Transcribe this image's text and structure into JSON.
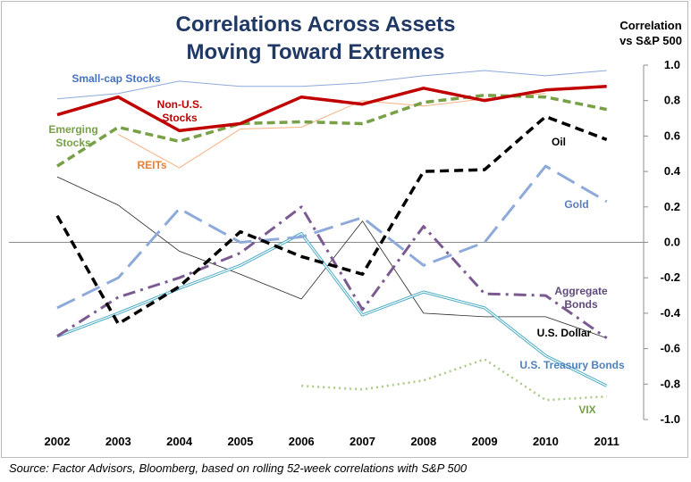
{
  "title_line1": "Correlations Across Assets",
  "title_line2": "Moving Toward Extremes",
  "y_title_line1": "Correlation",
  "y_title_line2": "vs S&P 500",
  "source": "Source: Factor Advisors, Bloomberg, based on rolling 52-week correlations with S&P 500",
  "chart_data": {
    "type": "line",
    "title": "Correlations Across Assets Moving Toward Extremes",
    "ylabel": "Correlation vs S&P 500",
    "xlabel": "",
    "x": [
      "2002",
      "2003",
      "2004",
      "2005",
      "2006",
      "2007",
      "2008",
      "2009",
      "2010",
      "2011"
    ],
    "y_ticks": [
      "1.0",
      "0.8",
      "0.6",
      "0.4",
      "0.2",
      "0.0",
      "-0.2",
      "-0.4",
      "-0.6",
      "-0.8",
      "-1.0"
    ],
    "ylim": [
      -1.0,
      1.0
    ],
    "grid": false,
    "legend": "inline labels",
    "series": [
      {
        "name": "Small-cap Stocks",
        "color": "#8eaadb",
        "style": "thin",
        "values": [
          0.81,
          0.84,
          0.91,
          0.88,
          0.88,
          0.9,
          0.94,
          0.97,
          0.94,
          0.97
        ]
      },
      {
        "name": "Non-U.S. Stocks",
        "label_lines": [
          "Non-U.S.",
          "Stocks"
        ],
        "color": "#c00000",
        "style": "thick",
        "values": [
          0.72,
          0.82,
          0.63,
          0.67,
          0.82,
          0.78,
          0.87,
          0.8,
          0.86,
          0.88
        ]
      },
      {
        "name": "Emerging Stocks",
        "label_lines": [
          "Emerging",
          "Stocks"
        ],
        "color": "#77a047",
        "style": "dashed",
        "values": [
          0.43,
          0.65,
          0.57,
          0.67,
          0.68,
          0.67,
          0.79,
          0.83,
          0.82,
          0.75
        ]
      },
      {
        "name": "REITs",
        "color": "#f4b183",
        "style": "thin",
        "values": [
          null,
          0.61,
          0.42,
          0.64,
          0.65,
          0.8,
          0.77,
          0.81,
          0.84,
          null
        ]
      },
      {
        "name": "Oil",
        "color": "#000000",
        "style": "dashed-heavy",
        "values": [
          0.15,
          -0.46,
          -0.25,
          0.06,
          -0.08,
          -0.18,
          0.4,
          0.41,
          0.71,
          0.58
        ]
      },
      {
        "name": "Gold",
        "color": "#8eaadb",
        "style": "long-dash",
        "values": [
          -0.37,
          -0.2,
          0.19,
          0.0,
          0.03,
          0.14,
          -0.13,
          0.0,
          0.43,
          0.23
        ]
      },
      {
        "name": "Aggregate Bonds",
        "label_lines": [
          "Aggregate",
          "Bonds"
        ],
        "color": "#7b5a91",
        "style": "dash-dot",
        "values": [
          -0.53,
          -0.31,
          -0.2,
          -0.06,
          0.2,
          -0.38,
          0.09,
          -0.29,
          -0.3,
          -0.54
        ]
      },
      {
        "name": "U.S. Dollar",
        "color": "#262626",
        "style": "hairline",
        "values": [
          0.37,
          0.21,
          -0.05,
          -0.18,
          -0.32,
          0.12,
          -0.4,
          -0.42,
          -0.42,
          -0.54
        ]
      },
      {
        "name": "U.S. Treasury Bonds",
        "color": "#4bacc6",
        "style": "double",
        "values": [
          -0.53,
          -0.4,
          -0.26,
          -0.13,
          0.05,
          -0.41,
          -0.28,
          -0.37,
          -0.64,
          -0.81
        ]
      },
      {
        "name": "VIX",
        "color": "#a9c987",
        "style": "dotted",
        "values": [
          null,
          null,
          null,
          null,
          -0.81,
          -0.83,
          -0.78,
          -0.66,
          -0.89,
          -0.87
        ]
      }
    ]
  }
}
